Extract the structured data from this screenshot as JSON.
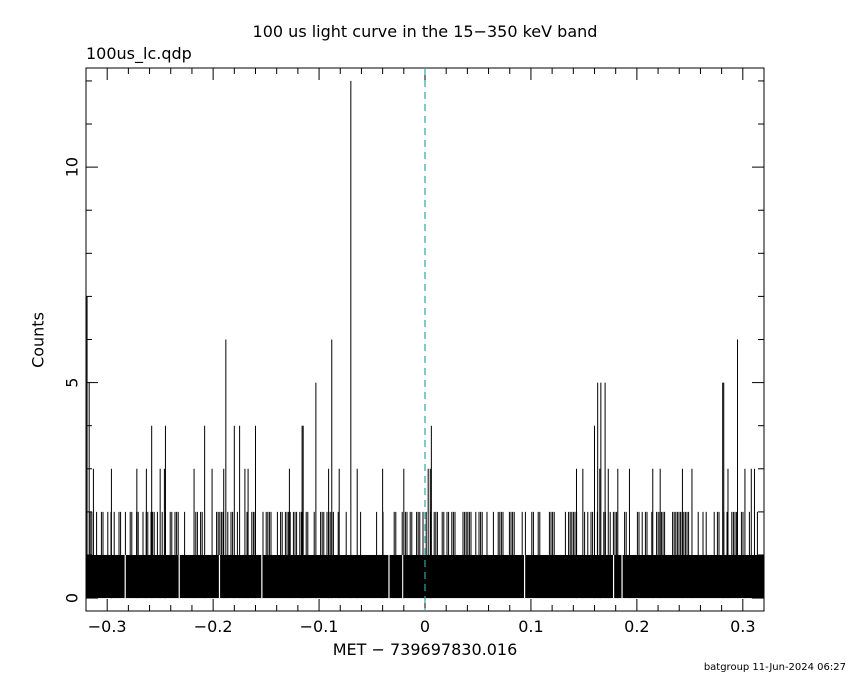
{
  "chart_data": {
    "type": "bar",
    "title": "100 us light curve in the 15−350 keV band",
    "subtitle": "100us_lc.qdp",
    "xlabel": "MET − 739697830.016",
    "ylabel": "Counts",
    "xlim": [
      -0.32,
      0.32
    ],
    "ylim": [
      -0.3,
      12.3
    ],
    "x_ticks": [
      -0.3,
      -0.2,
      -0.1,
      0,
      0.1,
      0.2,
      0.3
    ],
    "x_tick_labels": [
      "−0.3",
      "−0.2",
      "−0.1",
      "0",
      "0.1",
      "0.2",
      "0.3"
    ],
    "y_ticks": [
      0,
      5,
      10
    ],
    "y_tick_labels": [
      "0",
      "5",
      "10"
    ],
    "bin_width": 0.0001,
    "reference_line": {
      "x": 0,
      "style": "dashed",
      "color": "#2aa6a6"
    },
    "baseline_counts": 1,
    "gaps": [
      -0.283,
      -0.232,
      -0.194,
      -0.154,
      -0.034,
      -0.021,
      0.094,
      0.178,
      0.186
    ],
    "peaks": [
      {
        "x": -0.319,
        "counts": 7
      },
      {
        "x": -0.317,
        "counts": 5
      },
      {
        "x": -0.313,
        "counts": 3
      },
      {
        "x": -0.296,
        "counts": 3
      },
      {
        "x": -0.272,
        "counts": 3
      },
      {
        "x": -0.263,
        "counts": 3
      },
      {
        "x": -0.258,
        "counts": 4
      },
      {
        "x": -0.25,
        "counts": 3
      },
      {
        "x": -0.246,
        "counts": 3
      },
      {
        "x": -0.245,
        "counts": 4
      },
      {
        "x": -0.218,
        "counts": 3
      },
      {
        "x": -0.208,
        "counts": 4
      },
      {
        "x": -0.201,
        "counts": 3
      },
      {
        "x": -0.19,
        "counts": 3
      },
      {
        "x": -0.188,
        "counts": 6
      },
      {
        "x": -0.18,
        "counts": 4
      },
      {
        "x": -0.175,
        "counts": 4
      },
      {
        "x": -0.17,
        "counts": 3
      },
      {
        "x": -0.167,
        "counts": 3
      },
      {
        "x": -0.16,
        "counts": 4
      },
      {
        "x": -0.128,
        "counts": 3
      },
      {
        "x": -0.116,
        "counts": 4
      },
      {
        "x": -0.115,
        "counts": 4
      },
      {
        "x": -0.103,
        "counts": 5
      },
      {
        "x": -0.091,
        "counts": 3
      },
      {
        "x": -0.088,
        "counts": 6
      },
      {
        "x": -0.081,
        "counts": 3
      },
      {
        "x": -0.07,
        "counts": 12
      },
      {
        "x": -0.064,
        "counts": 3
      },
      {
        "x": -0.04,
        "counts": 3
      },
      {
        "x": -0.02,
        "counts": 3
      },
      {
        "x": 0.003,
        "counts": 3
      },
      {
        "x": 0.005,
        "counts": 3
      },
      {
        "x": 0.006,
        "counts": 4
      },
      {
        "x": 0.143,
        "counts": 3
      },
      {
        "x": 0.149,
        "counts": 3
      },
      {
        "x": 0.16,
        "counts": 4
      },
      {
        "x": 0.163,
        "counts": 5
      },
      {
        "x": 0.165,
        "counts": 3
      },
      {
        "x": 0.166,
        "counts": 5
      },
      {
        "x": 0.17,
        "counts": 5
      },
      {
        "x": 0.173,
        "counts": 3
      },
      {
        "x": 0.182,
        "counts": 3
      },
      {
        "x": 0.193,
        "counts": 3
      },
      {
        "x": 0.215,
        "counts": 3
      },
      {
        "x": 0.222,
        "counts": 3
      },
      {
        "x": 0.243,
        "counts": 3
      },
      {
        "x": 0.252,
        "counts": 3
      },
      {
        "x": 0.281,
        "counts": 5
      },
      {
        "x": 0.282,
        "counts": 5
      },
      {
        "x": 0.286,
        "counts": 3
      },
      {
        "x": 0.295,
        "counts": 6
      },
      {
        "x": 0.302,
        "counts": 3
      },
      {
        "x": 0.308,
        "counts": 3
      },
      {
        "x": 0.311,
        "counts": 3
      }
    ],
    "bars_color": "#000000"
  },
  "footer": {
    "credit": "batgroup 11-Jun-2024 06:27"
  }
}
